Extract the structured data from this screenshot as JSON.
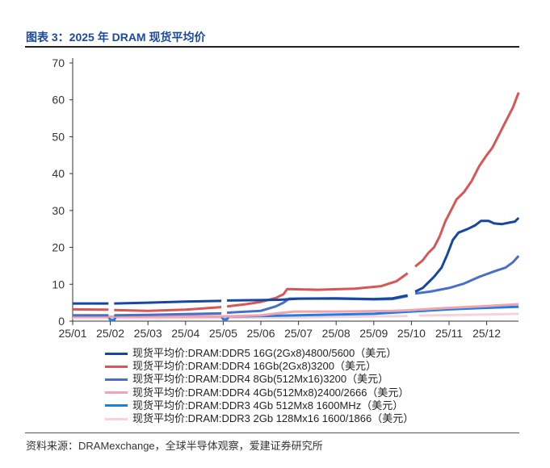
{
  "title": "图表 3：2025 年 DRAM 现货平均价",
  "source": "资料来源：DRAMexchange，全球半导体观察，爱建证券研究所",
  "chart_data": {
    "type": "line",
    "title": "图表 3：2025 年 DRAM 现货平均价",
    "xlabel": "",
    "ylabel": "",
    "ylim": [
      0,
      70
    ],
    "yticks": [
      0,
      10,
      20,
      30,
      40,
      50,
      60,
      70
    ],
    "xticks": [
      "25/01",
      "25/02",
      "25/03",
      "25/04",
      "25/05",
      "25/06",
      "25/07",
      "25/08",
      "25/09",
      "25/10",
      "25/11",
      "25/12"
    ],
    "x_unit": "months since 25/01",
    "legend_position": "bottom",
    "series": [
      {
        "name": "现货平均价:DRAM:DDR5 16G(2Gx8)4800/5600（美元）",
        "color": "#17479e",
        "width": 3,
        "points": [
          [
            0,
            4.8
          ],
          [
            0.95,
            4.8
          ],
          null,
          [
            1.1,
            4.8
          ],
          [
            2,
            5.0
          ],
          [
            3,
            5.3
          ],
          [
            3.95,
            5.5
          ],
          null,
          [
            4.1,
            5.6
          ],
          [
            5,
            5.7
          ],
          [
            5.5,
            5.8
          ],
          [
            6,
            6.1
          ],
          [
            7,
            6.2
          ],
          [
            8,
            6.0
          ],
          [
            8.5,
            6.2
          ],
          [
            8.9,
            7.0
          ],
          null,
          [
            9.1,
            8.0
          ],
          [
            9.3,
            9.0
          ],
          [
            9.45,
            10.5
          ],
          [
            9.6,
            12
          ],
          [
            9.8,
            14.5
          ],
          [
            9.95,
            18
          ],
          [
            10.1,
            22
          ],
          [
            10.25,
            24
          ],
          [
            10.5,
            25
          ],
          [
            10.7,
            26
          ],
          [
            10.85,
            27.2
          ],
          [
            11.05,
            27.2
          ],
          [
            11.2,
            26.5
          ],
          [
            11.4,
            26.3
          ],
          [
            11.6,
            26.7
          ],
          [
            11.75,
            27
          ],
          [
            11.85,
            28
          ]
        ]
      },
      {
        "name": "现货平均价:DRAM:DDR4 16Gb(2Gx8)3200（美元）",
        "color": "#d75656",
        "width": 3,
        "points": [
          [
            0,
            3.2
          ],
          [
            0.95,
            3.1
          ],
          null,
          [
            1.1,
            3.0
          ],
          [
            2,
            2.8
          ],
          [
            3,
            3.1
          ],
          [
            3.95,
            3.8
          ],
          null,
          [
            4.1,
            4.0
          ],
          [
            4.6,
            4.6
          ],
          [
            5,
            5.2
          ],
          [
            5.4,
            6.3
          ],
          [
            5.6,
            7.3
          ],
          [
            5.7,
            8.7
          ],
          [
            6.5,
            8.5
          ],
          [
            7.5,
            8.8
          ],
          [
            8.2,
            9.5
          ],
          [
            8.6,
            10.8
          ],
          [
            8.9,
            13
          ],
          null,
          [
            9.1,
            14.8
          ],
          [
            9.3,
            16.5
          ],
          [
            9.45,
            18.5
          ],
          [
            9.6,
            20
          ],
          [
            9.75,
            23
          ],
          [
            9.9,
            27
          ],
          [
            10.05,
            30
          ],
          [
            10.2,
            33
          ],
          [
            10.4,
            35
          ],
          [
            10.6,
            38
          ],
          [
            10.8,
            42
          ],
          [
            11,
            45
          ],
          [
            11.15,
            47
          ],
          [
            11.3,
            50
          ],
          [
            11.5,
            54
          ],
          [
            11.7,
            58
          ],
          [
            11.85,
            62
          ]
        ]
      },
      {
        "name": "现货平均价:DRAM:DDR4 8Gb(512Mx16)3200（美元）",
        "color": "#4a6fc9",
        "width": 3,
        "points": [
          [
            0,
            1.6
          ],
          [
            0.95,
            1.6
          ],
          null,
          [
            1.1,
            1.6
          ],
          [
            2,
            1.7
          ],
          [
            3,
            1.9
          ],
          [
            3.95,
            2.1
          ],
          null,
          [
            4.1,
            2.3
          ],
          [
            5,
            2.8
          ],
          [
            5.4,
            4.0
          ],
          [
            5.6,
            5.0
          ],
          [
            5.75,
            6.1
          ],
          [
            7,
            6.1
          ],
          [
            8,
            5.9
          ],
          [
            8.5,
            6.0
          ],
          [
            8.9,
            6.8
          ],
          null,
          [
            9.1,
            7.5
          ],
          [
            9.5,
            8.0
          ],
          [
            10,
            9.0
          ],
          [
            10.4,
            10.2
          ],
          [
            10.8,
            12
          ],
          [
            11.2,
            13.5
          ],
          [
            11.5,
            14.5
          ],
          [
            11.7,
            16
          ],
          [
            11.85,
            17.7
          ]
        ]
      },
      {
        "name": "现货平均价:DRAM:DDR4 4Gb(512Mx8)2400/2666（美元）",
        "color": "#f2a3ab",
        "width": 3,
        "points": [
          [
            0,
            1.2
          ],
          [
            4,
            1.3
          ],
          [
            5,
            1.6
          ],
          [
            5.6,
            2.3
          ],
          [
            5.9,
            2.6
          ],
          [
            7,
            2.6
          ],
          [
            8.5,
            2.8
          ],
          [
            9,
            3.0
          ],
          [
            10,
            3.6
          ],
          [
            11,
            4.1
          ],
          [
            11.85,
            4.6
          ]
        ]
      },
      {
        "name": "现货平均价:DRAM:DDR3 4Gb 512Mx8 1600MHz（美元）",
        "color": "#1e7ee8",
        "width": 3,
        "points": [
          [
            0,
            1.3
          ],
          [
            0.95,
            1.3
          ],
          [
            1.0,
            0.3
          ],
          [
            1.1,
            0.3
          ],
          [
            1.15,
            1.3
          ],
          [
            3.95,
            1.3
          ],
          [
            4.0,
            0.5
          ],
          [
            4.1,
            0.5
          ],
          [
            4.15,
            1.3
          ],
          [
            5,
            1.4
          ],
          [
            6,
            1.6
          ],
          [
            8,
            2.0
          ],
          [
            9,
            2.6
          ],
          [
            10,
            3.2
          ],
          [
            11,
            3.6
          ],
          [
            11.85,
            3.9
          ]
        ]
      },
      {
        "name": "现货平均价:DRAM:DDR3 2Gb 128Mx16 1600/1866（美元）",
        "color": "#f6d3da",
        "width": 3,
        "points": [
          [
            0,
            0.8
          ],
          [
            3,
            0.8
          ],
          [
            6,
            1.0
          ],
          [
            8.9,
            1.4
          ],
          null,
          [
            9.2,
            1.5
          ],
          [
            11,
            1.8
          ],
          [
            11.85,
            2.0
          ]
        ]
      }
    ]
  }
}
